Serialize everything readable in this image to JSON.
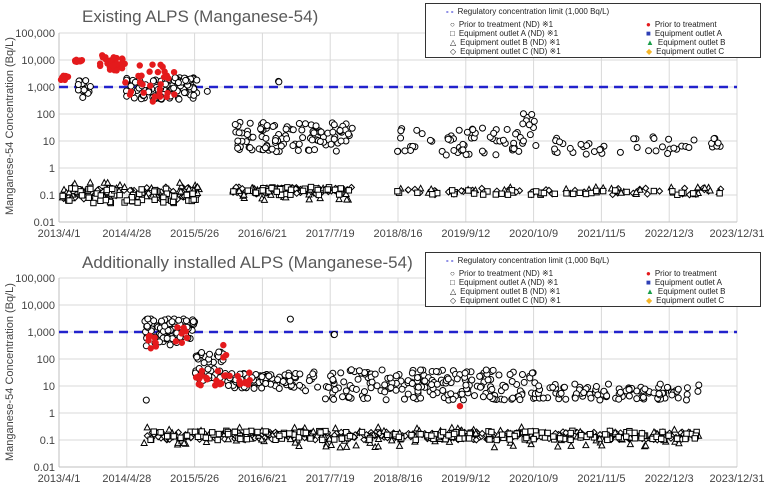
{
  "chart_data": [
    {
      "type": "scatter",
      "title": "Existing ALPS (Manganese-54)",
      "ylabel": "Manganese-54 Concentration (Bq/L)",
      "yscale": "log",
      "ylim": [
        0.01,
        100000
      ],
      "y_ticks": [
        "100,000",
        "10,000",
        "1,000",
        "100",
        "10",
        "1",
        "0.1",
        "0.01"
      ],
      "x_ticks": [
        "2013/4/1",
        "2014/4/28",
        "2015/5/26",
        "2016/6/21",
        "2017/7/19",
        "2018/8/16",
        "2019/9/12",
        "2020/10/9",
        "2021/11/5",
        "2022/12/3",
        "2023/12/31"
      ],
      "xlim_years": [
        2013.25,
        2024.0
      ],
      "grid": true,
      "regulatory_limit": 1000,
      "clusters": [
        {
          "series": "prior",
          "from": 2013.28,
          "to": 2013.4,
          "low": 1800,
          "high": 2600,
          "n": 10
        },
        {
          "series": "prior",
          "from": 2013.5,
          "to": 2013.62,
          "low": 8500,
          "high": 10500,
          "n": 10
        },
        {
          "series": "prior",
          "from": 2013.9,
          "to": 2014.3,
          "low": 4000,
          "high": 15000,
          "n": 35
        },
        {
          "series": "prior",
          "from": 2014.3,
          "to": 2015.1,
          "low": 250,
          "high": 7000,
          "n": 30
        },
        {
          "series": "prior_nd",
          "from": 2013.55,
          "to": 2013.75,
          "low": 400,
          "high": 1800,
          "n": 18
        },
        {
          "series": "prior_nd",
          "from": 2014.3,
          "to": 2015.45,
          "low": 350,
          "high": 2200,
          "n": 120
        },
        {
          "series": "prior_nd",
          "from": 2015.6,
          "to": 2015.62,
          "low": 650,
          "high": 700,
          "n": 1
        },
        {
          "series": "prior_nd",
          "from": 2016.0,
          "to": 2017.9,
          "low": 4,
          "high": 50,
          "n": 110
        },
        {
          "series": "prior_nd",
          "from": 2016.72,
          "to": 2016.74,
          "low": 1300,
          "high": 2500,
          "n": 2
        },
        {
          "series": "prior_nd",
          "from": 2018.6,
          "to": 2020.6,
          "low": 3,
          "high": 30,
          "n": 60
        },
        {
          "series": "prior_nd",
          "from": 2020.6,
          "to": 2020.8,
          "low": 10,
          "high": 110,
          "n": 10
        },
        {
          "series": "prior_nd",
          "from": 2020.8,
          "to": 2023.8,
          "low": 3,
          "high": 15,
          "n": 45
        },
        {
          "series": "outlet_a_nd",
          "from": 2013.3,
          "to": 2015.45,
          "low": 0.05,
          "high": 0.2,
          "n": 60
        },
        {
          "series": "outlet_b_nd",
          "from": 2013.3,
          "to": 2015.5,
          "low": 0.07,
          "high": 0.3,
          "n": 50
        },
        {
          "series": "outlet_c_nd",
          "from": 2013.3,
          "to": 2015.45,
          "low": 0.07,
          "high": 0.2,
          "n": 80
        },
        {
          "series": "outlet_a_nd",
          "from": 2016.0,
          "to": 2017.9,
          "low": 0.1,
          "high": 0.2,
          "n": 40
        },
        {
          "series": "outlet_b_nd",
          "from": 2016.0,
          "to": 2017.9,
          "low": 0.05,
          "high": 0.2,
          "n": 30
        },
        {
          "series": "outlet_c_nd",
          "from": 2016.0,
          "to": 2017.9,
          "low": 0.11,
          "high": 0.2,
          "n": 70
        },
        {
          "series": "outlet_a_nd",
          "from": 2018.6,
          "to": 2023.8,
          "low": 0.1,
          "high": 0.15,
          "n": 40
        },
        {
          "series": "outlet_b_nd",
          "from": 2018.6,
          "to": 2023.8,
          "low": 0.1,
          "high": 0.2,
          "n": 30
        },
        {
          "series": "outlet_c_nd",
          "from": 2018.6,
          "to": 2023.8,
          "low": 0.1,
          "high": 0.18,
          "n": 50
        }
      ]
    },
    {
      "type": "scatter",
      "title": "Additionally installed ALPS (Manganese-54)",
      "ylabel": "Manganese-54 Concentration (Bq/L)",
      "yscale": "log",
      "ylim": [
        0.01,
        100000
      ],
      "y_ticks": [
        "100,000",
        "10,000",
        "1,000",
        "100",
        "10",
        "1",
        "0.1",
        "0.01"
      ],
      "x_ticks": [
        "2013/4/1",
        "2014/4/28",
        "2015/5/26",
        "2016/6/21",
        "2017/7/19",
        "2018/8/16",
        "2019/9/12",
        "2020/10/9",
        "2021/11/5",
        "2022/12/3",
        "2023/12/31"
      ],
      "xlim_years": [
        2013.25,
        2024.0
      ],
      "grid": true,
      "regulatory_limit": 1000,
      "clusters": [
        {
          "series": "prior_nd",
          "from": 2014.6,
          "to": 2015.4,
          "low": 300,
          "high": 3200,
          "n": 90
        },
        {
          "series": "prior_nd",
          "from": 2014.62,
          "to": 2014.64,
          "low": 3,
          "high": 3,
          "n": 1
        },
        {
          "series": "prior_nd",
          "from": 2015.4,
          "to": 2015.9,
          "low": 15,
          "high": 200,
          "n": 40
        },
        {
          "series": "prior_nd",
          "from": 2015.9,
          "to": 2017.0,
          "low": 8,
          "high": 30,
          "n": 90
        },
        {
          "series": "prior_nd",
          "from": 2016.9,
          "to": 2016.92,
          "low": 3000,
          "high": 3000,
          "n": 1
        },
        {
          "series": "prior_nd",
          "from": 2017.6,
          "to": 2017.62,
          "low": 800,
          "high": 950,
          "n": 2
        },
        {
          "series": "prior_nd",
          "from": 2017.0,
          "to": 2020.8,
          "low": 3,
          "high": 40,
          "n": 200
        },
        {
          "series": "prior_nd",
          "from": 2020.8,
          "to": 2023.4,
          "low": 3,
          "high": 12,
          "n": 100
        },
        {
          "series": "prior",
          "from": 2014.65,
          "to": 2014.8,
          "low": 150,
          "high": 1000,
          "n": 8
        },
        {
          "series": "prior",
          "from": 2015.1,
          "to": 2015.3,
          "low": 300,
          "high": 1500,
          "n": 8
        },
        {
          "series": "prior",
          "from": 2015.4,
          "to": 2016.3,
          "low": 10,
          "high": 40,
          "n": 30
        },
        {
          "series": "prior",
          "from": 2015.85,
          "to": 2015.9,
          "low": 80,
          "high": 1200,
          "n": 3
        },
        {
          "series": "prior",
          "from": 2019.6,
          "to": 2019.62,
          "low": 1.8,
          "high": 1.8,
          "n": 1
        },
        {
          "series": "outlet_a_nd",
          "from": 2014.6,
          "to": 2023.4,
          "low": 0.1,
          "high": 0.22,
          "n": 160
        },
        {
          "series": "outlet_b_nd",
          "from": 2014.6,
          "to": 2023.4,
          "low": 0.05,
          "high": 0.3,
          "n": 120
        },
        {
          "series": "outlet_c_nd",
          "from": 2014.6,
          "to": 2023.4,
          "low": 0.1,
          "high": 0.2,
          "n": 300
        }
      ]
    }
  ],
  "legend": {
    "limit": "Regulatory concentration limit (1,000 Bq/L)",
    "prior_nd": "Prior to treatment (ND)  ※1",
    "outlet_a_nd": "Equipment outlet A (ND)  ※1",
    "outlet_b_nd": "Equipment outlet B (ND)  ※1",
    "outlet_c_nd": "Equipment outlet C (ND)  ※1",
    "prior": "Prior to treatment",
    "outlet_a": "Equipment outlet A",
    "outlet_b": "Equipment outlet B",
    "outlet_c": "Equipment outlet C"
  },
  "colors": {
    "prior": "#e41a1c",
    "outlet_a": "#2e3fb5",
    "outlet_b": "#1a9e4a",
    "outlet_c": "#f5b629",
    "limit": "#2222cc",
    "grid": "#d9d9d9"
  }
}
